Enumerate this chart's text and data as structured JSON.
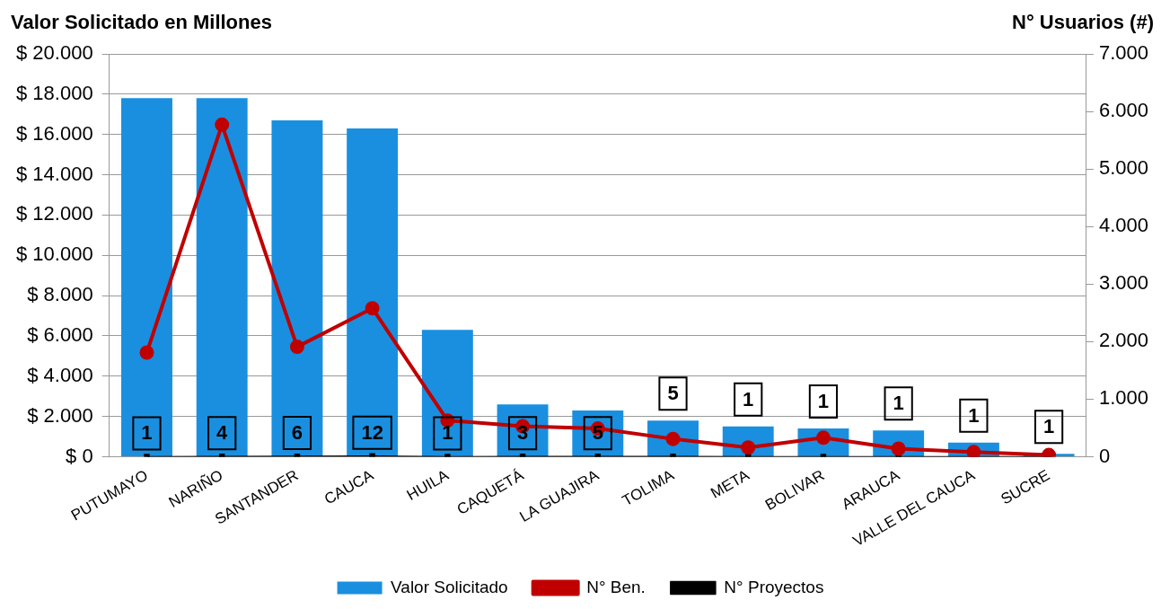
{
  "chart_data": {
    "type": "bar",
    "ylabel": "Valor Solicitado en Millones",
    "y2label": "N° Usuarios (#)",
    "categories": [
      "PUTUMAYO",
      "NARIÑO",
      "SANTANDER",
      "CAUCA",
      "HUILA",
      "CAQUETÁ",
      "LA GUAJIRA",
      "TOLIMA",
      "META",
      "BOLIVAR",
      "ARAUCA",
      "VALLE DEL CAUCA",
      "SUCRE"
    ],
    "series": [
      {
        "name": "Valor Solicitado",
        "color": "#1a8fe0",
        "values": [
          17800,
          17800,
          16700,
          16300,
          6300,
          2600,
          2300,
          1800,
          1500,
          1400,
          1300,
          700,
          150
        ]
      },
      {
        "name": "N° Ben.",
        "type": "line",
        "axis": "y2",
        "color": "#c00000",
        "marker": "circle",
        "values": [
          1810,
          5770,
          1910,
          2580,
          630,
          530,
          490,
          310,
          160,
          330,
          140,
          80,
          30
        ]
      },
      {
        "name": "N° Proyectos",
        "type": "line",
        "axis": "y2",
        "color": "#000000",
        "marker": "square",
        "values": [
          1,
          4,
          6,
          12,
          1,
          3,
          5,
          5,
          1,
          1,
          1,
          1,
          1
        ],
        "value_labels": [
          "1",
          "4",
          "6",
          "12",
          "1",
          "3",
          "5",
          "5",
          "1",
          "1",
          "1",
          "1",
          "1"
        ]
      }
    ],
    "ylim": [
      0,
      20000
    ],
    "yticks": [
      {
        "value": 0,
        "label": "$ 0"
      },
      {
        "value": 2000,
        "label": "$ 2.000"
      },
      {
        "value": 4000,
        "label": "$ 4.000"
      },
      {
        "value": 6000,
        "label": "$ 6.000"
      },
      {
        "value": 8000,
        "label": "$ 8.000"
      },
      {
        "value": 10000,
        "label": "$ 10.000"
      },
      {
        "value": 12000,
        "label": "$ 12.000"
      },
      {
        "value": 14000,
        "label": "$ 14.000"
      },
      {
        "value": 16000,
        "label": "$ 16.000"
      },
      {
        "value": 18000,
        "label": "$ 18.000"
      },
      {
        "value": 20000,
        "label": "$ 20.000"
      }
    ],
    "y2lim": [
      0,
      7000
    ],
    "y2ticks": [
      0,
      {
        "value": 1000,
        "label": "1.000"
      },
      {
        "value": 2000,
        "label": "2.000"
      },
      {
        "value": 3000,
        "label": "3.000"
      },
      {
        "value": 4000,
        "label": "4.000"
      },
      {
        "value": 5000,
        "label": "5.000"
      },
      {
        "value": 6000,
        "label": "6.000"
      },
      {
        "value": 7000,
        "label": "7.000"
      }
    ],
    "grid": "y",
    "legend": "bottom"
  }
}
